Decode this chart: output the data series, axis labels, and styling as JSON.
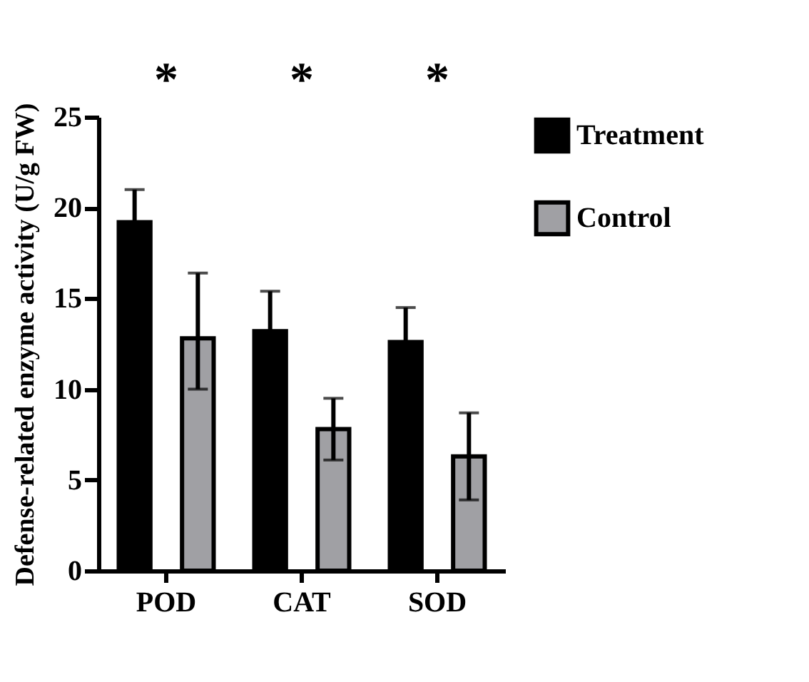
{
  "chart_data": {
    "type": "bar",
    "ylabel": "Defense-related enzyme activity (U/g FW)",
    "categories": [
      "POD",
      "CAT",
      "SOD"
    ],
    "series": [
      {
        "name": "Treatment",
        "color": "#000000",
        "values": [
          19.2,
          13.2,
          12.6
        ],
        "errors": [
          1.8,
          2.2,
          1.9
        ]
      },
      {
        "name": "Control",
        "color": "#a0a0a4",
        "values": [
          12.8,
          7.8,
          6.3
        ],
        "errors": [
          [
            10.0,
            16.4
          ],
          [
            6.1,
            9.5
          ],
          [
            3.9,
            8.7
          ]
        ]
      }
    ],
    "ylim": [
      0,
      25
    ],
    "yticks": [
      0,
      5,
      10,
      15,
      20,
      25
    ],
    "grid": false,
    "legend": "top right",
    "annotations": [
      "*",
      "*",
      "*"
    ]
  }
}
